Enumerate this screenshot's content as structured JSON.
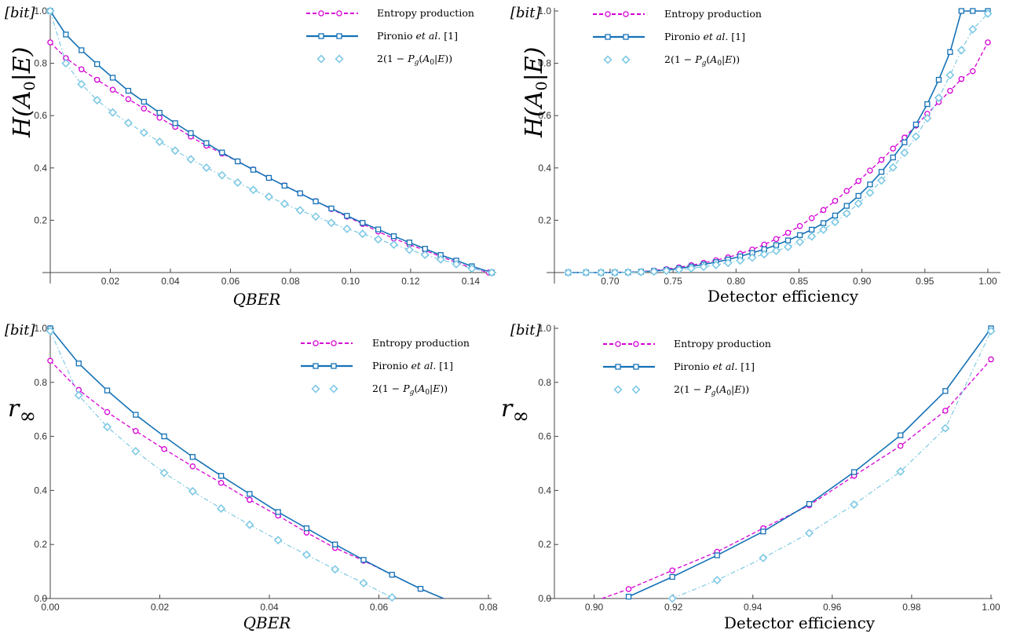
{
  "colors": {
    "entropy": "#d400d4",
    "pironio": "#1572b6",
    "guess": "#7ec9e4",
    "axis": "#444444"
  },
  "chart_data": [
    {
      "type": "line",
      "xlabel": "QBER",
      "ylabel": "H(A_0|E)",
      "unit_label": "[bit]",
      "xlim": [
        0,
        0.148
      ],
      "ylim": [
        0,
        1.0
      ],
      "xticks": [
        0.02,
        0.04,
        0.06,
        0.08,
        0.1,
        0.12,
        0.14
      ],
      "xtick_labels": [
        "0.02",
        "0.04",
        "0.06",
        "0.08",
        "0.10",
        "0.12",
        "0.14"
      ],
      "yticks": [
        0.2,
        0.4,
        0.6,
        0.8,
        1.0
      ],
      "ytick_labels": [
        "0.2",
        "0.4",
        "0.6",
        "0.8",
        "1.0"
      ],
      "series": [
        {
          "name": "Entropy production",
          "style": "entropy",
          "x": [
            0,
            0.0052,
            0.0104,
            0.0156,
            0.0208,
            0.026,
            0.0312,
            0.0364,
            0.0416,
            0.0468,
            0.052,
            0.0572,
            0.0624,
            0.0676,
            0.0728,
            0.078,
            0.0832,
            0.0884,
            0.0936,
            0.0988,
            0.104,
            0.1092,
            0.1144,
            0.1196,
            0.1248,
            0.13,
            0.1352,
            0.1404,
            0.146
          ],
          "y": [
            0.88,
            0.82,
            0.777,
            0.737,
            0.699,
            0.663,
            0.627,
            0.592,
            0.557,
            0.52,
            0.485,
            0.455,
            0.425,
            0.394,
            0.362,
            0.333,
            0.303,
            0.273,
            0.243,
            0.214,
            0.186,
            0.157,
            0.13,
            0.107,
            0.085,
            0.061,
            0.039,
            0.017,
            0
          ]
        },
        {
          "name": "Pironio et al. [1]",
          "style": "pironio",
          "x": [
            0,
            0.0052,
            0.0104,
            0.0156,
            0.0208,
            0.026,
            0.0312,
            0.0364,
            0.0416,
            0.0468,
            0.052,
            0.0572,
            0.0624,
            0.0676,
            0.0728,
            0.078,
            0.0832,
            0.0884,
            0.0936,
            0.0988,
            0.104,
            0.1092,
            0.1144,
            0.1196,
            0.1248,
            0.13,
            0.1352,
            0.1404,
            0.147
          ],
          "y": [
            1.0,
            0.91,
            0.85,
            0.797,
            0.745,
            0.695,
            0.653,
            0.611,
            0.571,
            0.533,
            0.495,
            0.459,
            0.425,
            0.393,
            0.362,
            0.332,
            0.303,
            0.272,
            0.245,
            0.217,
            0.19,
            0.165,
            0.139,
            0.115,
            0.091,
            0.067,
            0.046,
            0.024,
            0
          ]
        },
        {
          "name": "2(1 − P_g(A_0|E))",
          "style": "guess",
          "x": [
            0,
            0.0052,
            0.0104,
            0.0156,
            0.0208,
            0.026,
            0.0312,
            0.0364,
            0.0416,
            0.0468,
            0.052,
            0.0572,
            0.0624,
            0.0676,
            0.0728,
            0.078,
            0.0832,
            0.0884,
            0.0936,
            0.0988,
            0.104,
            0.1092,
            0.1144,
            0.1196,
            0.1248,
            0.13,
            0.1352,
            0.1404,
            0.147
          ],
          "y": [
            1.0,
            0.8,
            0.72,
            0.659,
            0.612,
            0.572,
            0.535,
            0.5,
            0.466,
            0.433,
            0.401,
            0.372,
            0.344,
            0.316,
            0.29,
            0.263,
            0.238,
            0.214,
            0.19,
            0.167,
            0.148,
            0.127,
            0.107,
            0.087,
            0.068,
            0.05,
            0.032,
            0.015,
            0
          ]
        }
      ]
    },
    {
      "type": "line",
      "xlabel": "Detector efficiency",
      "ylabel": "H(A_0|E)",
      "unit_label": "[bit]",
      "xlim": [
        0.662,
        1.005
      ],
      "ylim": [
        0,
        1.0
      ],
      "xticks": [
        0.7,
        0.75,
        0.8,
        0.85,
        0.9,
        0.95,
        1.0
      ],
      "xtick_labels": [
        "0.70",
        "0.75",
        "0.80",
        "0.85",
        "0.90",
        "0.95",
        "1.00"
      ],
      "yticks": [
        0.2,
        0.4,
        0.6,
        0.8,
        1.0
      ],
      "ytick_labels": [
        "0.2",
        "0.4",
        "0.6",
        "0.8",
        "1.0"
      ],
      "series": [
        {
          "name": "Entropy production",
          "style": "entropy",
          "x": [
            0.6667,
            0.6809,
            0.6928,
            0.7037,
            0.7143,
            0.7246,
            0.7348,
            0.7447,
            0.7547,
            0.7645,
            0.7743,
            0.7841,
            0.7937,
            0.8033,
            0.8129,
            0.8224,
            0.8319,
            0.8413,
            0.8507,
            0.8601,
            0.8694,
            0.8787,
            0.8879,
            0.8972,
            0.9064,
            0.9155,
            0.9247,
            0.9338,
            0.9429,
            0.9519,
            0.961,
            0.97,
            0.979,
            0.988,
            1.0
          ],
          "y": [
            0,
            0,
            0,
            0.001,
            0.002,
            0.004,
            0.008,
            0.013,
            0.02,
            0.028,
            0.037,
            0.047,
            0.058,
            0.072,
            0.088,
            0.107,
            0.128,
            0.152,
            0.178,
            0.208,
            0.239,
            0.274,
            0.312,
            0.35,
            0.39,
            0.431,
            0.474,
            0.516,
            0.562,
            0.607,
            0.652,
            0.695,
            0.74,
            0.77,
            0.88
          ]
        },
        {
          "name": "Pironio et al. [1]",
          "style": "pironio",
          "x": [
            0.6667,
            0.6809,
            0.6928,
            0.7037,
            0.7143,
            0.7246,
            0.7348,
            0.7447,
            0.7547,
            0.7645,
            0.7743,
            0.7841,
            0.7937,
            0.8033,
            0.8129,
            0.8224,
            0.8319,
            0.8413,
            0.8507,
            0.8601,
            0.8694,
            0.8787,
            0.8879,
            0.8972,
            0.9064,
            0.9155,
            0.9247,
            0.9338,
            0.9429,
            0.9519,
            0.961,
            0.97,
            0.979,
            0.988,
            1.0
          ],
          "y": [
            0,
            0,
            0,
            0,
            0.001,
            0.003,
            0.006,
            0.01,
            0.016,
            0.023,
            0.031,
            0.04,
            0.05,
            0.062,
            0.075,
            0.089,
            0.105,
            0.123,
            0.143,
            0.164,
            0.189,
            0.218,
            0.255,
            0.293,
            0.337,
            0.385,
            0.44,
            0.498,
            0.566,
            0.644,
            0.737,
            0.843,
            1.0,
            1.0,
            1.0
          ]
        },
        {
          "name": "2(1 − P_g(A_0|E))",
          "style": "guess",
          "x": [
            0.6667,
            0.6809,
            0.6928,
            0.7037,
            0.7143,
            0.7246,
            0.7348,
            0.7447,
            0.7547,
            0.7645,
            0.7743,
            0.7841,
            0.7937,
            0.8033,
            0.8129,
            0.8224,
            0.8319,
            0.8413,
            0.8507,
            0.8601,
            0.8694,
            0.8787,
            0.8879,
            0.8972,
            0.9064,
            0.9155,
            0.9247,
            0.9338,
            0.9429,
            0.9519,
            0.961,
            0.97,
            0.979,
            0.988,
            1.0
          ],
          "y": [
            0,
            0,
            0,
            0,
            0.001,
            0.002,
            0.004,
            0.007,
            0.011,
            0.016,
            0.022,
            0.029,
            0.037,
            0.046,
            0.057,
            0.07,
            0.083,
            0.098,
            0.117,
            0.138,
            0.164,
            0.193,
            0.226,
            0.264,
            0.305,
            0.352,
            0.402,
            0.458,
            0.52,
            0.59,
            0.668,
            0.755,
            0.85,
            0.93,
            0.99
          ]
        }
      ]
    },
    {
      "type": "line",
      "xlabel": "QBER",
      "ylabel": "r_∞",
      "unit_label": "[bit]",
      "xlim": [
        0,
        0.08
      ],
      "ylim": [
        0,
        1.0
      ],
      "xticks": [
        0.0,
        0.02,
        0.04,
        0.06,
        0.08
      ],
      "xtick_labels": [
        "0.00",
        "0.02",
        "0.04",
        "0.06",
        "0.08"
      ],
      "yticks": [
        0.0,
        0.2,
        0.4,
        0.6,
        0.8,
        1.0
      ],
      "ytick_labels": [
        "0.0",
        "0.2",
        "0.4",
        "0.6",
        "0.8",
        "1.0"
      ],
      "series": [
        {
          "name": "Entropy production",
          "style": "entropy",
          "x": [
            0,
            0.0052,
            0.0104,
            0.0156,
            0.0208,
            0.026,
            0.0312,
            0.0364,
            0.0416,
            0.0468,
            0.052,
            0.0572,
            0.0624,
            0.0676,
            0.0718
          ],
          "y": [
            0.88,
            0.772,
            0.69,
            0.62,
            0.553,
            0.489,
            0.428,
            0.365,
            0.307,
            0.244,
            0.187,
            0.14,
            0.088,
            0.036,
            0
          ],
          "mark_count": 14
        },
        {
          "name": "Pironio et al. [1]",
          "style": "pironio",
          "x": [
            0,
            0.0052,
            0.0104,
            0.0156,
            0.0208,
            0.026,
            0.0312,
            0.0364,
            0.0416,
            0.0468,
            0.052,
            0.0572,
            0.0624,
            0.0676,
            0.0718
          ],
          "y": [
            1.0,
            0.87,
            0.77,
            0.68,
            0.6,
            0.524,
            0.454,
            0.387,
            0.32,
            0.26,
            0.2,
            0.143,
            0.088,
            0.036,
            0
          ],
          "mark_count": 14
        },
        {
          "name": "2(1 − P_g(A_0|E))",
          "style": "guess",
          "x": [
            0,
            0.0052,
            0.0104,
            0.0156,
            0.0208,
            0.026,
            0.0312,
            0.0364,
            0.0416,
            0.0468,
            0.052,
            0.0572,
            0.0624
          ],
          "y": [
            0.99,
            0.752,
            0.635,
            0.545,
            0.465,
            0.397,
            0.333,
            0.273,
            0.216,
            0.162,
            0.108,
            0.057,
            0.004
          ],
          "mark_count": 13
        }
      ]
    },
    {
      "type": "line",
      "xlabel": "Detector efficiency",
      "ylabel": "r_∞",
      "unit_label": "[bit]",
      "xlim": [
        0.89,
        1.0
      ],
      "ylim": [
        0,
        1.0
      ],
      "xticks": [
        0.9,
        0.92,
        0.94,
        0.96,
        0.98,
        1.0
      ],
      "xtick_labels": [
        "0.90",
        "0.92",
        "0.94",
        "0.96",
        "0.98",
        "1.00"
      ],
      "yticks": [
        0.0,
        0.2,
        0.4,
        0.6,
        0.8,
        1.0
      ],
      "ytick_labels": [
        "0.0",
        "0.2",
        "0.4",
        "0.6",
        "0.8",
        "1.0"
      ],
      "series": [
        {
          "name": "Entropy production",
          "style": "entropy",
          "x": [
            0.902,
            0.9087,
            0.9197,
            0.931,
            0.9426,
            0.9542,
            0.9655,
            0.9772,
            0.9885,
            1.0
          ],
          "y": [
            0,
            0.035,
            0.104,
            0.173,
            0.26,
            0.345,
            0.454,
            0.565,
            0.695,
            0.885
          ],
          "mark_count": 9
        },
        {
          "name": "Pironio et al. [1]",
          "style": "pironio",
          "x": [
            0.9087,
            0.9197,
            0.931,
            0.9426,
            0.9542,
            0.9655,
            0.9772,
            0.9885,
            1.0
          ],
          "y": [
            0.007,
            0.08,
            0.16,
            0.248,
            0.35,
            0.468,
            0.604,
            0.768,
            1.0
          ],
          "mark_count": 9
        },
        {
          "name": "2(1 − P_g(A_0|E))",
          "style": "guess",
          "x": [
            0.9197,
            0.931,
            0.9426,
            0.9542,
            0.9655,
            0.9772,
            0.9885,
            1.0
          ],
          "y": [
            0,
            0.068,
            0.15,
            0.242,
            0.348,
            0.47,
            0.63,
            0.99
          ],
          "mark_count": 8
        }
      ]
    }
  ],
  "legend": {
    "entries": [
      {
        "style": "entropy",
        "label": "Entropy production"
      },
      {
        "style": "pironio",
        "label_prefix": "Pironio ",
        "label_italic": "et al.",
        "label_suffix": " [1]"
      },
      {
        "style": "guess",
        "label": "2(1 − Pg(A0|E))"
      }
    ]
  }
}
